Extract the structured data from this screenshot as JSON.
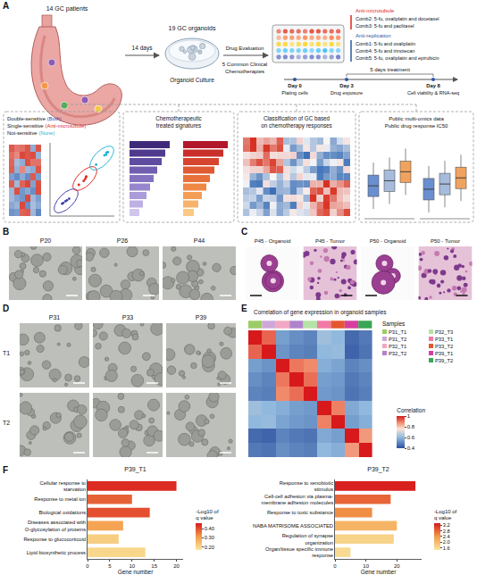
{
  "figure": {
    "panels": {
      "A": {
        "letter": "A",
        "patients": "14 GC patients",
        "culture_time": "14 days",
        "organoids": "19 GC organoids",
        "culture_label": "Organoid Culture",
        "evaluation": "Drug Evaluation",
        "chemotherapies": "5 Common Clinical Chemotherapies",
        "drug_groups": [
          {
            "name": "Anti-microtubule",
            "color": "#e0261f",
            "combs": [
              "Comb2: 5-fu, oxaliplatin and docetaxel",
              "Comb3: 5-fu and paclitaxel"
            ]
          },
          {
            "name": "Anti-replication",
            "color": "#2b57a6",
            "combs": [
              "Comb1: 5-fu and oxaliplatin",
              "Comb4: 5-fu and irinotecan",
              "Comb5: 5-fu, oxaliplatin and epirubicin"
            ]
          }
        ],
        "timeline": {
          "title": "5 days treatment",
          "steps": [
            {
              "day": "Day 0",
              "label": "Plating cells"
            },
            {
              "day": "Day 3",
              "label": "Drug exposure"
            },
            {
              "day": "Day 8",
              "label": "Cell viability & RNA-seq"
            }
          ]
        },
        "boxes": [
          {
            "groups": [
              {
                "label": "Double-sensitive",
                "tag": "(Both)",
                "color": "#3b3ea8"
              },
              {
                "label": "Single-sensitive",
                "tag": "(Anti-microtubule)",
                "color": "#e0261f"
              },
              {
                "label": "Not-sensitive",
                "tag": "(None)",
                "color": "#1fb3d6"
              }
            ]
          },
          {
            "title": "Chemotherapeutic treated signatures"
          },
          {
            "title": "Classification of GC based on chemotherapy responses"
          },
          {
            "lines": [
              "Public multi-omics data",
              "Public drug response IC50"
            ]
          }
        ]
      },
      "B": {
        "letter": "B",
        "images": [
          "P20",
          "P26",
          "P44"
        ]
      },
      "C": {
        "letter": "C",
        "images": [
          "P45 - Organoid",
          "P45 - Tumor",
          "P50 - Organoid",
          "P50 - Tumor"
        ]
      },
      "D": {
        "letter": "D",
        "columns": [
          "P31",
          "P33",
          "P39"
        ],
        "rows": [
          "T1",
          "T2"
        ]
      },
      "E": {
        "letter": "E"
      },
      "F": {
        "letter": "F"
      }
    }
  },
  "chart_data": [
    {
      "type": "heatmap",
      "title": "Correlation of gene expression in organoid samples",
      "categories": [
        "P31_T1",
        "P31_T2",
        "P32_T1",
        "P32_T2",
        "P32_T3",
        "P33_T1",
        "P33_T2",
        "P39_T1",
        "P39_T2"
      ],
      "colors": [
        "#9ccc65",
        "#cfa8d9",
        "#f2a7c3",
        "#b084cc",
        "#b5e3a6",
        "#f07aa5",
        "#e4572e",
        "#d63fa0",
        "#3aa655"
      ],
      "legend_title": "Samples",
      "legend": "right",
      "tick_labels": false,
      "cells": [
        [
          1,
          0.92,
          0.55,
          0.52,
          0.5,
          0.62,
          0.6,
          0.45,
          0.48
        ],
        [
          0.92,
          1,
          0.53,
          0.5,
          0.49,
          0.6,
          0.61,
          0.44,
          0.47
        ],
        [
          0.55,
          0.53,
          1,
          0.9,
          0.88,
          0.58,
          0.56,
          0.5,
          0.52
        ],
        [
          0.52,
          0.5,
          0.9,
          1,
          0.91,
          0.55,
          0.54,
          0.48,
          0.5
        ],
        [
          0.5,
          0.49,
          0.88,
          0.91,
          1,
          0.54,
          0.53,
          0.47,
          0.49
        ],
        [
          0.62,
          0.6,
          0.58,
          0.55,
          0.54,
          1,
          0.89,
          0.57,
          0.6
        ],
        [
          0.6,
          0.61,
          0.56,
          0.54,
          0.53,
          0.89,
          1,
          0.55,
          0.58
        ],
        [
          0.45,
          0.44,
          0.5,
          0.48,
          0.47,
          0.57,
          0.55,
          1,
          0.86
        ],
        [
          0.48,
          0.47,
          0.52,
          0.5,
          0.49,
          0.6,
          0.58,
          0.86,
          1
        ]
      ],
      "colorbar": {
        "title": "Correlation",
        "range": [
          0.4,
          1
        ],
        "ticks": [
          1,
          0.8,
          0.6,
          0.4
        ]
      }
    },
    {
      "type": "bar",
      "orientation": "horizontal",
      "title": "P39_T1",
      "xlabel": "Gene number",
      "categories": [
        "Cellular response to starvation",
        "Response to metal ion",
        "Biological oxidations",
        "Diseases associated with O-glycosylation of proteins",
        "Response to glucocorticoid",
        "Lipid biosynthetic process"
      ],
      "values": [
        20,
        10,
        14,
        8,
        7,
        13
      ],
      "neg_log10_q": [
        0.44,
        0.38,
        0.4,
        0.3,
        0.22,
        0.2
      ],
      "colorbar": {
        "title": "-Log10 of q value",
        "range": [
          0.17,
          0.46
        ],
        "ticks": [
          {
            "value": 0.4,
            "label": "0.40"
          },
          {
            "value": 0.3,
            "label": "0.30"
          },
          {
            "value": 0.2,
            "label": "0.20"
          }
        ]
      },
      "xlim": [
        0,
        21.5
      ],
      "xticks": [
        0,
        5,
        10,
        15,
        20
      ],
      "grid": false
    },
    {
      "type": "bar",
      "orientation": "horizontal",
      "title": "P39_T2",
      "xlabel": "Gene number",
      "categories": [
        "Response to xenobiotic stimulus",
        "Cell-cell adhesion via plasma-membrane adhesion molecules",
        "Response to toxic substance",
        "NABA MATRISOME ASSOCIATED",
        "Regulation of synapse organization",
        "Organ/tissue specific immune response"
      ],
      "values": [
        26,
        18,
        12,
        20,
        19,
        5
      ],
      "neg_log10_q": [
        3.3,
        2.8,
        2.5,
        2.1,
        1.7,
        1.6
      ],
      "colorbar": {
        "title": "-Log10 of q value",
        "range": [
          1.45,
          3.35
        ],
        "ticks": [
          3.2,
          2.8,
          2.4,
          {
            "value": 2,
            "label": "2.0"
          },
          1.6
        ]
      },
      "xlim": [
        0,
        28
      ],
      "xticks": [
        0,
        10,
        20
      ],
      "grid": false
    }
  ]
}
